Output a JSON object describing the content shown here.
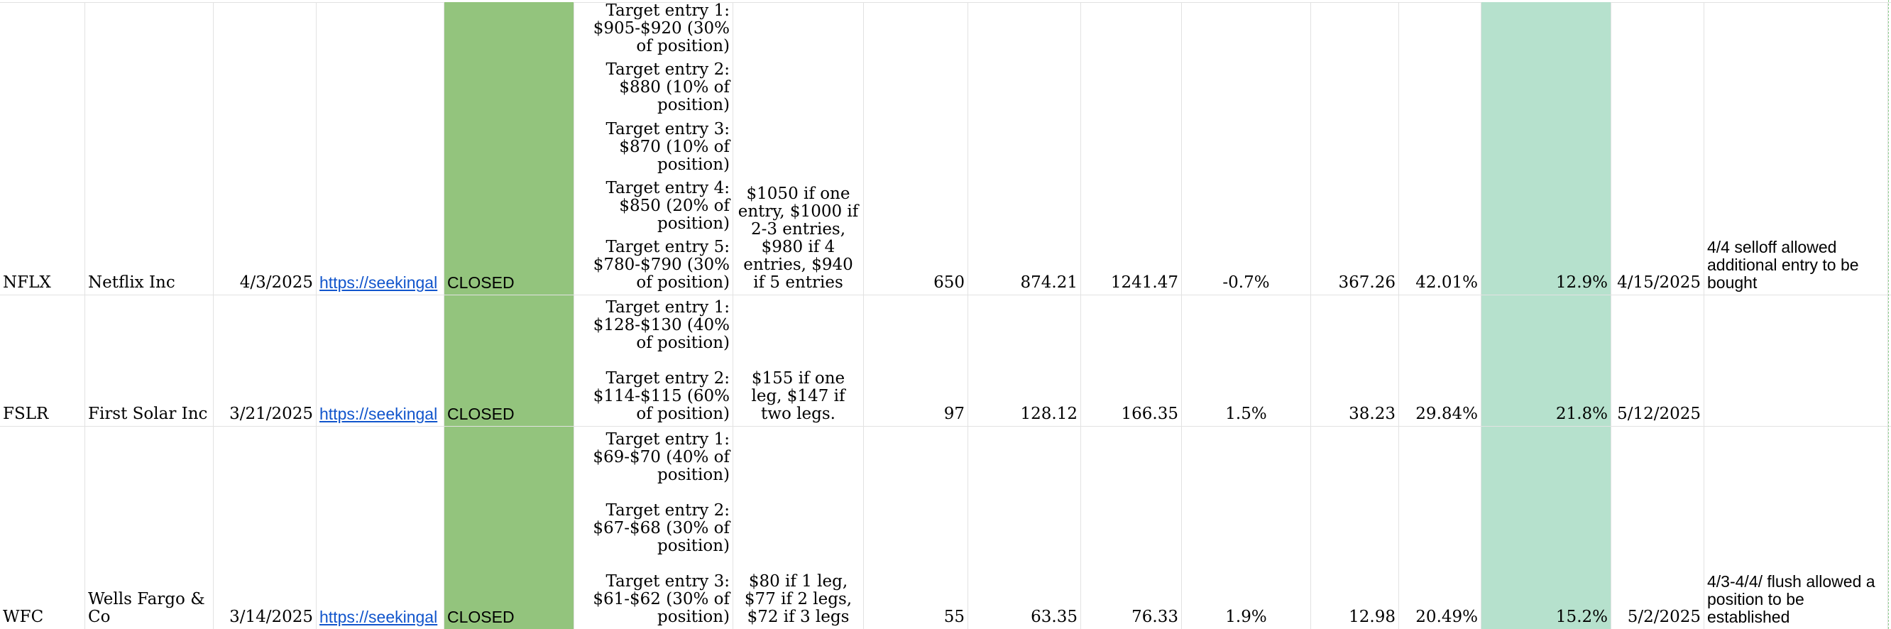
{
  "rows": [
    {
      "ticker": "NFLX",
      "company": "Netflix Inc",
      "date": "4/3/2025",
      "link": "https://seekingal",
      "status": "CLOSED",
      "entries": [
        "Target entry 1: $905-$920 (30% of position)",
        "Target entry 2: $880 (10% of position)",
        "Target entry 3: $870 (10% of position)",
        "Target entry 4: $850 (20% of position)",
        "Target entry 5: $780-$790 (30% of position)"
      ],
      "exit": "$1050 if one entry, $1000 if 2-3 entries, $980 if 4 entries, $940 if 5 entries",
      "shares": "650",
      "entry_price": "874.21",
      "exit_price": "1241.47",
      "pct_small": "-0.7%",
      "gain": "367.26",
      "gain_pct": "42.01%",
      "highlight_pct": "12.9%",
      "close_date": "4/15/2025",
      "notes": "4/4 selloff allowed additional entry to be bought"
    },
    {
      "ticker": "FSLR",
      "company": "First Solar Inc",
      "date": "3/21/2025",
      "link": "https://seekingal",
      "status": "CLOSED",
      "entries": [
        "Target entry 1: $128-$130 (40% of position)",
        "Target entry 2: $114-$115 (60% of position)"
      ],
      "exit": "$155 if one leg, $147 if two legs.",
      "shares": "97",
      "entry_price": "128.12",
      "exit_price": "166.35",
      "pct_small": "1.5%",
      "gain": "38.23",
      "gain_pct": "29.84%",
      "highlight_pct": "21.8%",
      "close_date": "5/12/2025",
      "notes": ""
    },
    {
      "ticker": "WFC",
      "company": "Wells Fargo & Co",
      "date": "3/14/2025",
      "link": "https://seekingal",
      "status": "CLOSED",
      "entries": [
        "Target entry 1: $69-$70 (40% of position)",
        "Target entry 2: $67-$68 (30% of position)",
        "Target entry 3: $61-$62 (30% of position)"
      ],
      "exit": "$80 if 1 leg, $77 if 2 legs, $72 if 3 legs",
      "shares": "55",
      "entry_price": "63.35",
      "exit_price": "76.33",
      "pct_small": "1.9%",
      "gain": "12.98",
      "gain_pct": "20.49%",
      "highlight_pct": "15.2%",
      "close_date": "5/2/2025",
      "notes": "4/3-4/4/ flush allowed a position to be established"
    }
  ]
}
